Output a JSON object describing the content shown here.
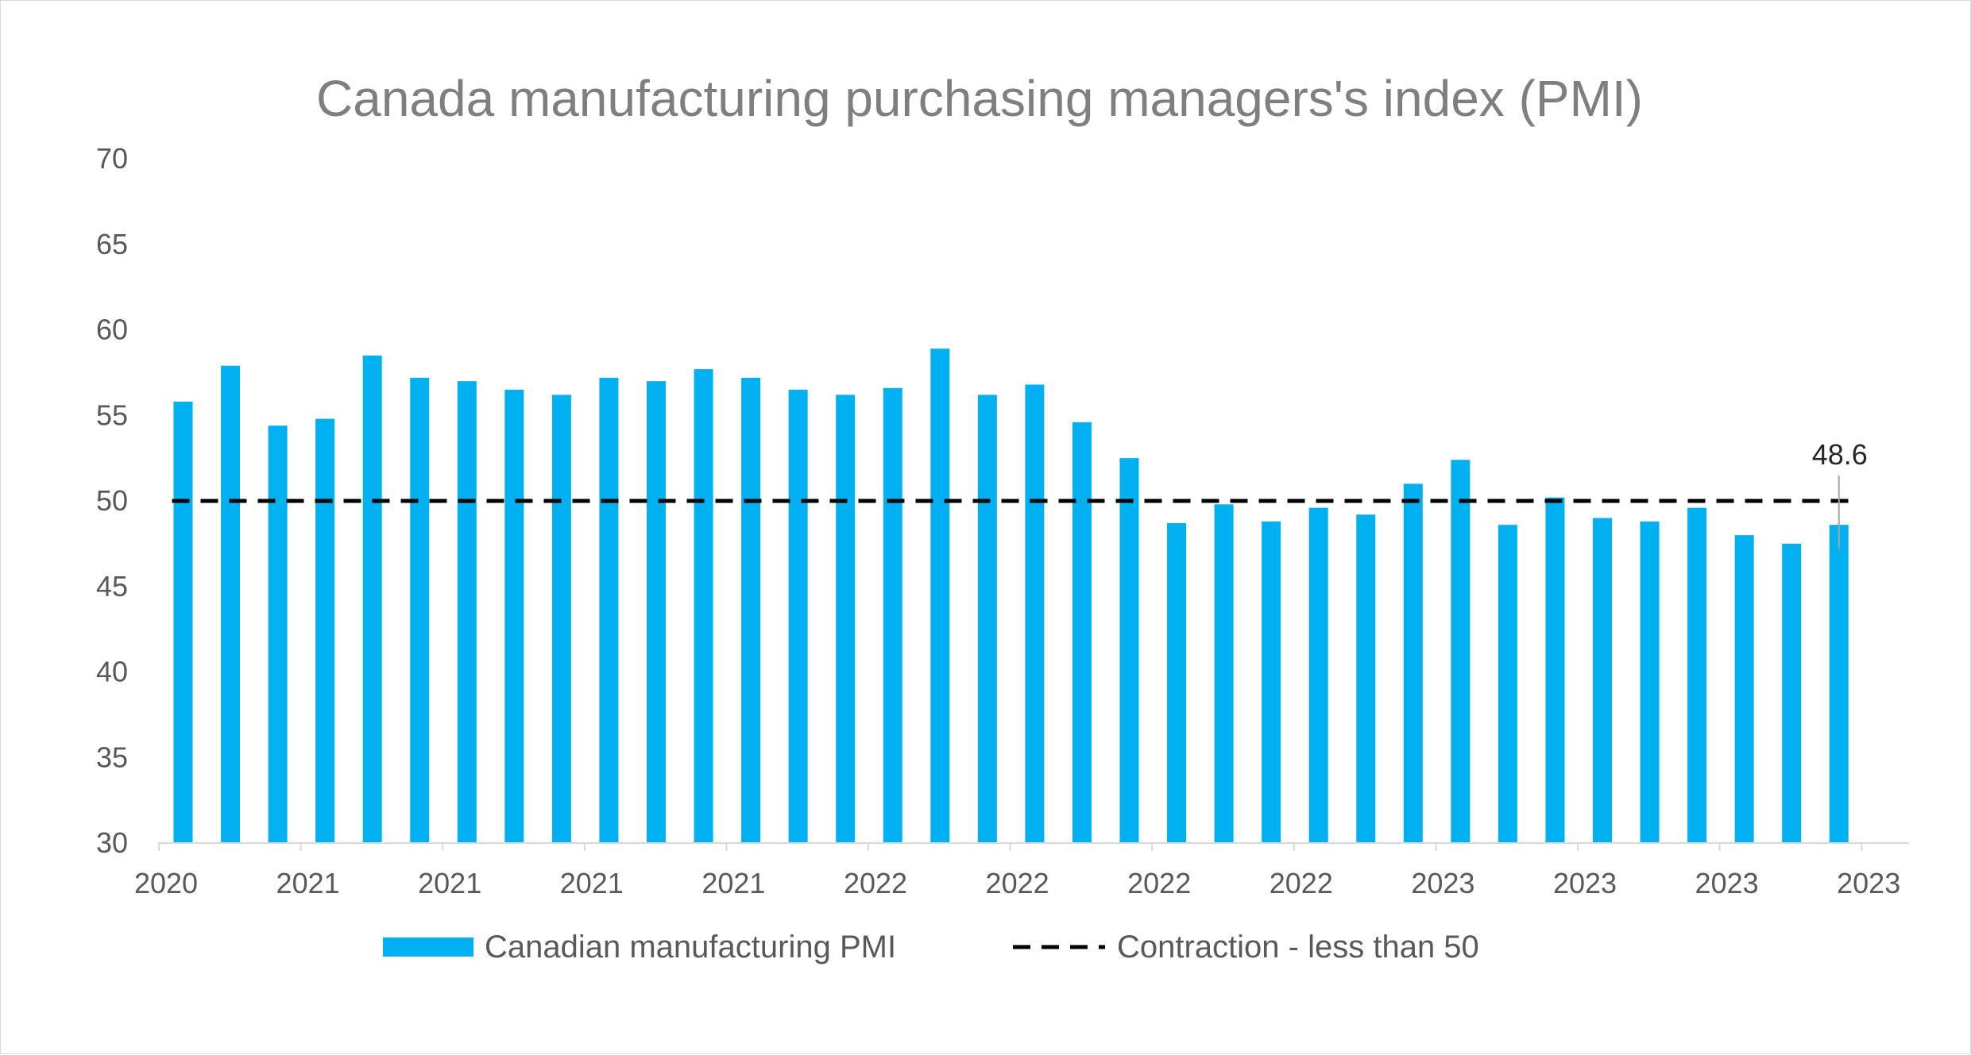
{
  "chart_data": {
    "type": "bar",
    "title": "Canada manufacturing purchasing managers's index (PMI)",
    "xlabel": "",
    "ylabel": "",
    "ylim": [
      30,
      70
    ],
    "yticks": [
      30,
      35,
      40,
      45,
      50,
      55,
      60,
      65,
      70
    ],
    "xtick_labels": [
      "2020",
      "2021",
      "2021",
      "2021",
      "2021",
      "2022",
      "2022",
      "2022",
      "2022",
      "2023",
      "2023",
      "2023",
      "2023"
    ],
    "grid": false,
    "legend_position": "bottom",
    "series": [
      {
        "name": "Canadian manufacturing PMI",
        "type": "bar",
        "color": "#00b0f0",
        "values": [
          55.8,
          57.9,
          54.4,
          54.8,
          58.5,
          57.2,
          57.0,
          56.5,
          56.2,
          57.2,
          57.0,
          57.7,
          57.2,
          56.5,
          56.2,
          56.6,
          58.9,
          56.2,
          56.8,
          54.6,
          52.5,
          48.7,
          49.8,
          48.8,
          49.6,
          49.2,
          51.0,
          52.4,
          48.6,
          50.2,
          49.0,
          48.8,
          49.6,
          48.0,
          47.5,
          48.6
        ]
      },
      {
        "name": "Contraction - less than 50",
        "type": "line",
        "style": "dashed",
        "color": "#000000",
        "value": 50
      }
    ],
    "annotations": [
      {
        "text": "48.6",
        "target_index": 35
      }
    ]
  }
}
